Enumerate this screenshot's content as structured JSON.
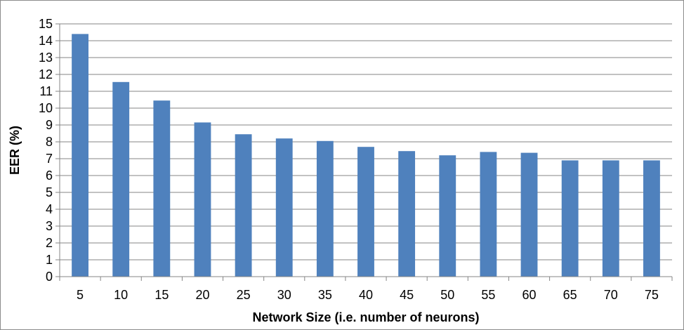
{
  "chart_data": {
    "type": "bar",
    "title": "",
    "xlabel": "Network Size (i.e. number of neurons)",
    "ylabel": "EER (%)",
    "categories": [
      "5",
      "10",
      "15",
      "20",
      "25",
      "30",
      "35",
      "40",
      "45",
      "50",
      "55",
      "60",
      "65",
      "70",
      "75"
    ],
    "values": [
      14.4,
      11.55,
      10.45,
      9.15,
      8.45,
      8.2,
      8.05,
      7.7,
      7.45,
      7.2,
      7.4,
      7.35,
      6.9,
      6.9,
      6.9
    ],
    "ylim": [
      0,
      15
    ],
    "yticks": [
      "0",
      "1",
      "2",
      "3",
      "4",
      "5",
      "6",
      "7",
      "8",
      "9",
      "10",
      "11",
      "12",
      "13",
      "14",
      "15"
    ],
    "grid": true,
    "legend": "none",
    "colors": {
      "bar": "#4f81bd",
      "grid": "#868686",
      "axis": "#868686"
    }
  }
}
